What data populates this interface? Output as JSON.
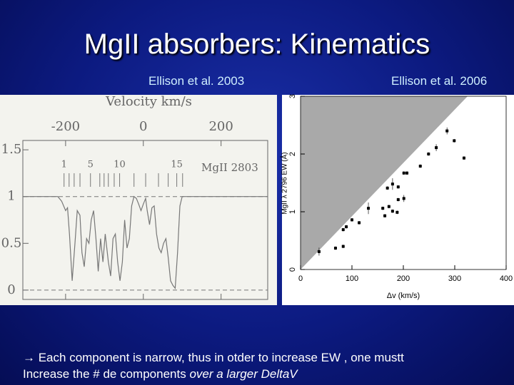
{
  "title": "MgII absorbers: Kinematics",
  "captions": [
    "Ellison et al. 2003",
    "Ellison et al. 2006"
  ],
  "chart_data": [
    {
      "type": "line",
      "title": "Velocity km/s",
      "annotation": "MgII 2803",
      "color": "#777777",
      "x": [
        -310,
        -250,
        -220,
        -210,
        -200,
        -195,
        -190,
        -183,
        -176,
        -170,
        -163,
        -158,
        -152,
        -146,
        -140,
        -134,
        -128,
        -122,
        -116,
        -110,
        -104,
        -98,
        -90,
        -84,
        -78,
        -72,
        -66,
        -60,
        -54,
        -48,
        -42,
        -36,
        -30,
        -24,
        -18,
        -12,
        -6,
        0,
        6,
        10,
        16,
        22,
        28,
        34,
        40,
        46,
        52,
        58,
        64,
        70,
        76,
        82,
        88,
        94,
        100,
        120,
        200,
        320
      ],
      "values": [
        1.0,
        1.0,
        1.0,
        0.95,
        0.85,
        0.88,
        0.6,
        0.1,
        0.5,
        0.85,
        0.8,
        0.4,
        0.25,
        0.55,
        0.5,
        0.75,
        0.85,
        0.55,
        0.2,
        0.55,
        0.3,
        0.6,
        0.3,
        0.15,
        0.55,
        0.6,
        0.3,
        0.1,
        0.3,
        0.75,
        0.45,
        0.55,
        0.9,
        1.0,
        0.98,
        0.92,
        0.85,
        0.92,
        0.98,
        0.85,
        0.7,
        0.88,
        0.9,
        0.6,
        0.45,
        0.4,
        0.5,
        0.55,
        0.35,
        0.1,
        0.05,
        0.02,
        0.4,
        0.9,
        1.0,
        1.0,
        1.0,
        1.0
      ],
      "xlim": [
        -310,
        320
      ],
      "ylim": [
        -0.1,
        1.6
      ],
      "xticks": [
        -200,
        0,
        200
      ],
      "yticks": [
        0,
        0.5,
        1,
        1.5
      ],
      "reference_lines": [
        0,
        1
      ],
      "components": [
        -204,
        -191,
        -178,
        -163,
        -136,
        -112,
        -101,
        -90,
        -75,
        -61,
        -24,
        6,
        39,
        64,
        86,
        101
      ],
      "component_labels": [
        "1",
        null,
        null,
        null,
        "5",
        null,
        null,
        null,
        null,
        "10",
        null,
        null,
        null,
        null,
        "15",
        null
      ]
    },
    {
      "type": "scatter",
      "xlabel": "Δv (km/s)",
      "ylabel": "MgII λ 2796 EW (Å)",
      "color": "#000000",
      "shade_color": "#a9a9a9",
      "x": [
        36,
        68,
        83,
        83,
        89,
        100,
        114,
        132,
        160,
        164,
        169,
        172,
        179,
        179,
        188,
        190,
        190,
        201,
        201,
        207,
        233,
        249,
        264,
        285,
        299,
        318
      ],
      "values": [
        0.31,
        0.37,
        0.4,
        0.69,
        0.74,
        0.86,
        0.81,
        1.06,
        1.06,
        0.93,
        1.41,
        1.09,
        1.01,
        1.48,
        0.99,
        1.43,
        1.21,
        1.23,
        1.67,
        1.67,
        1.79,
        2.0,
        2.11,
        2.4,
        2.23,
        1.93
      ],
      "errors": [
        0.07,
        0.03,
        0.03,
        0.03,
        0.03,
        0.03,
        0.03,
        0.1,
        0.03,
        0.03,
        0.03,
        0.03,
        0.03,
        0.1,
        0.03,
        0.03,
        0.03,
        0.06,
        0.03,
        0.03,
        0.03,
        0.03,
        0.06,
        0.06,
        0.03,
        0.03
      ],
      "shade_x": [
        0,
        325,
        0
      ],
      "shade_y": [
        0,
        3,
        3
      ],
      "xlim": [
        0,
        400
      ],
      "ylim": [
        0,
        3
      ],
      "xticks": [
        0,
        100,
        200,
        300,
        400
      ],
      "yticks": [
        0,
        1,
        2,
        3
      ]
    }
  ],
  "footer": [
    "→ Each component is narrow, thus in otder to increase EW , one mustt",
    "Increase the # de components",
    "over a larger DeltaV"
  ]
}
